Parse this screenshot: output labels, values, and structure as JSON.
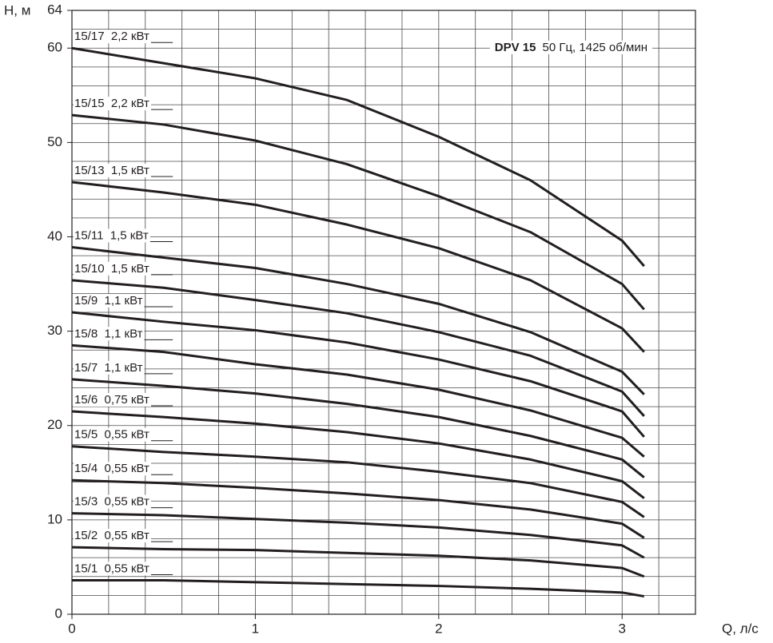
{
  "chart_data": {
    "type": "line",
    "title": "DPV 15",
    "subtitle": "50 Гц, 1425 об/мин",
    "y_label": "H, м",
    "x_label": "Q, л/с",
    "color": "#231f20",
    "xlim": [
      0,
      3.4
    ],
    "ylim": [
      0,
      64
    ],
    "xticks": [
      0,
      1,
      2,
      3
    ],
    "yticks": [
      0,
      10,
      20,
      30,
      40,
      50,
      60,
      64
    ],
    "xgrid": [
      0,
      0.2,
      0.4,
      0.6,
      0.8,
      1,
      1.2,
      1.4,
      1.6,
      1.8,
      2,
      2.2,
      2.4,
      2.6,
      2.8,
      3,
      3.2,
      3.4
    ],
    "ygrid": [
      0,
      2,
      4,
      6,
      8,
      10,
      12,
      14,
      16,
      18,
      20,
      22,
      24,
      26,
      28,
      30,
      32,
      34,
      36,
      38,
      40,
      42,
      44,
      46,
      48,
      50,
      52,
      54,
      56,
      58,
      60,
      62,
      64
    ],
    "grid": true,
    "x": [
      0,
      0.5,
      1,
      1.5,
      2,
      2.5,
      3,
      3.12
    ],
    "series": [
      {
        "name": "15/17  2,2 кВт",
        "values": [
          60,
          58.4,
          56.8,
          54.5,
          50.6,
          46,
          39.6,
          36.9
        ]
      },
      {
        "name": "15/15  2,2 кВт",
        "values": [
          52.9,
          51.9,
          50.2,
          47.7,
          44.3,
          40.5,
          35,
          32.3
        ]
      },
      {
        "name": "15/13  1,5 кВт",
        "values": [
          45.8,
          44.7,
          43.4,
          41.3,
          38.8,
          35.4,
          30.3,
          27.8
        ]
      },
      {
        "name": "15/11  1,5 кВт",
        "values": [
          38.9,
          37.8,
          36.7,
          35,
          32.9,
          29.9,
          25.7,
          23.3
        ]
      },
      {
        "name": "15/10  1,5 кВт",
        "values": [
          35.4,
          34.6,
          33.3,
          31.9,
          29.9,
          27.4,
          23.6,
          21
        ]
      },
      {
        "name": "15/9  1,1 кВт",
        "values": [
          32,
          31,
          30.1,
          28.8,
          27,
          24.7,
          21.5,
          18.8
        ]
      },
      {
        "name": "15/8  1,1 кВт",
        "values": [
          28.5,
          27.8,
          26.5,
          25.4,
          23.8,
          21.6,
          18.7,
          16.7
        ]
      },
      {
        "name": "15/7  1,1 кВт",
        "values": [
          24.9,
          24.2,
          23.4,
          22.3,
          20.9,
          18.9,
          16.4,
          14.5
        ]
      },
      {
        "name": "15/6  0,75 кВт",
        "values": [
          21.5,
          20.9,
          20.2,
          19.3,
          18.1,
          16.4,
          14.1,
          12.3
        ]
      },
      {
        "name": "15/5  0,55 кВт",
        "values": [
          17.8,
          17.2,
          16.7,
          16.1,
          15.1,
          13.9,
          11.9,
          10.3
        ]
      },
      {
        "name": "15/4  0,55 кВт",
        "values": [
          14.2,
          13.9,
          13.4,
          12.8,
          12.1,
          11.1,
          9.6,
          8.1
        ]
      },
      {
        "name": "15/3  0,55 кВт",
        "values": [
          10.7,
          10.5,
          10.1,
          9.7,
          9.2,
          8.4,
          7.3,
          6
        ]
      },
      {
        "name": "15/2  0,55 кВт",
        "values": [
          7.1,
          6.9,
          6.8,
          6.5,
          6.2,
          5.7,
          4.9,
          4
        ]
      },
      {
        "name": "15/1  0,55 кВт",
        "values": [
          3.6,
          3.6,
          3.4,
          3.2,
          3,
          2.7,
          2.3,
          1.9
        ]
      }
    ]
  }
}
